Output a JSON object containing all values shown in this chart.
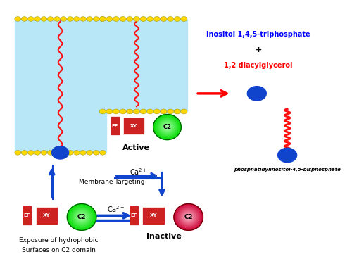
{
  "membrane_color": "#FFD700",
  "membrane_tail_color": "#B8E8F8",
  "ef_color": "#CC2222",
  "xy_color": "#CC2222",
  "c2_active_color_outer": "#00DD00",
  "c2_active_color_inner": "#AAFFAA",
  "c2_inactive_color_outer": "#CC0033",
  "c2_inactive_color_inner": "#FFBBCC",
  "blue_circle_color": "#1144CC",
  "wavy_color": "#FF1111",
  "arrow_blue": "#1144CC",
  "arrow_red": "#FF0000",
  "text_blue": "#0000FF",
  "text_red": "#FF0000",
  "text_black": "#000000",
  "inositol_line1": "Inositol 1,4,5-triphosphate",
  "inositol_line2": "+",
  "inositol_line3": "1,2 diacylglycerol",
  "pi_text": "phosphatidylinositol-4,5-bisphosphate",
  "active_text": "Active",
  "inactive_text": "Inactive",
  "membrane_targeting_text": "Membrane Targeting",
  "exposure_line1": "Exposure of hydrophobic",
  "exposure_line2": "Surfaces on C2 domain",
  "ca2_text": "Ca2+"
}
